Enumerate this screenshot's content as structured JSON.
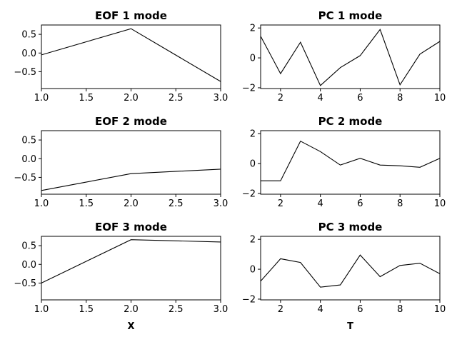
{
  "chart_data": [
    {
      "type": "line",
      "title": "EOF 1 mode",
      "xlabel": "",
      "ylabel": "",
      "x": [
        1,
        2,
        3
      ],
      "y": [
        -0.05,
        0.65,
        -0.76
      ],
      "xlim": [
        1.0,
        3.0
      ],
      "ylim": [
        -0.95,
        0.75
      ],
      "xticks": [
        1.0,
        1.5,
        2.0,
        2.5,
        3.0
      ],
      "xtick_labels": [
        "1.0",
        "1.5",
        "2.0",
        "2.5",
        "3.0"
      ],
      "yticks": [
        0.5,
        0.0,
        -0.5
      ],
      "ytick_labels": [
        "0.5",
        "0.0",
        "−0.5"
      ]
    },
    {
      "type": "line",
      "title": "PC 1 mode",
      "xlabel": "",
      "ylabel": "",
      "x": [
        1,
        2,
        3,
        4,
        5,
        6,
        7,
        8,
        9,
        10
      ],
      "y": [
        1.45,
        -1.05,
        1.05,
        -1.85,
        -0.65,
        0.15,
        1.9,
        -1.8,
        0.25,
        1.1
      ],
      "xlim": [
        1,
        10
      ],
      "ylim": [
        -2.05,
        2.2
      ],
      "xticks": [
        2,
        4,
        6,
        8,
        10
      ],
      "xtick_labels": [
        "2",
        "4",
        "6",
        "8",
        "10"
      ],
      "yticks": [
        2,
        0,
        -2
      ],
      "ytick_labels": [
        "2",
        "0",
        "−2"
      ]
    },
    {
      "type": "line",
      "title": "EOF 2 mode",
      "xlabel": "",
      "ylabel": "",
      "x": [
        1,
        2,
        3
      ],
      "y": [
        -0.85,
        -0.4,
        -0.28
      ],
      "xlim": [
        1.0,
        3.0
      ],
      "ylim": [
        -0.95,
        0.75
      ],
      "xticks": [
        1.0,
        1.5,
        2.0,
        2.5,
        3.0
      ],
      "xtick_labels": [
        "1.0",
        "1.5",
        "2.0",
        "2.5",
        "3.0"
      ],
      "yticks": [
        0.5,
        0.0,
        -0.5
      ],
      "ytick_labels": [
        "0.5",
        "0.0",
        "−0.5"
      ]
    },
    {
      "type": "line",
      "title": "PC 2 mode",
      "xlabel": "",
      "ylabel": "",
      "x": [
        1,
        2,
        3,
        4,
        5,
        6,
        7,
        8,
        9,
        10
      ],
      "y": [
        -1.15,
        -1.15,
        1.5,
        0.8,
        -0.1,
        0.35,
        -0.1,
        -0.15,
        -0.25,
        0.35
      ],
      "xlim": [
        1,
        10
      ],
      "ylim": [
        -2.05,
        2.2
      ],
      "xticks": [
        2,
        4,
        6,
        8,
        10
      ],
      "xtick_labels": [
        "2",
        "4",
        "6",
        "8",
        "10"
      ],
      "yticks": [
        2,
        0,
        -2
      ],
      "ytick_labels": [
        "2",
        "0",
        "−2"
      ]
    },
    {
      "type": "line",
      "title": "EOF 3 mode",
      "xlabel": "X",
      "ylabel": "",
      "x": [
        1,
        2,
        3
      ],
      "y": [
        -0.5,
        0.66,
        0.6
      ],
      "xlim": [
        1.0,
        3.0
      ],
      "ylim": [
        -0.95,
        0.75
      ],
      "xticks": [
        1.0,
        1.5,
        2.0,
        2.5,
        3.0
      ],
      "xtick_labels": [
        "1.0",
        "1.5",
        "2.0",
        "2.5",
        "3.0"
      ],
      "yticks": [
        0.5,
        0.0,
        -0.5
      ],
      "ytick_labels": [
        "0.5",
        "0.0",
        "−0.5"
      ]
    },
    {
      "type": "line",
      "title": "PC 3 mode",
      "xlabel": "T",
      "ylabel": "",
      "x": [
        1,
        2,
        3,
        4,
        5,
        6,
        7,
        8,
        9,
        10
      ],
      "y": [
        -0.8,
        0.7,
        0.45,
        -1.2,
        -1.05,
        0.95,
        -0.5,
        0.25,
        0.4,
        -0.3
      ],
      "xlim": [
        1,
        10
      ],
      "ylim": [
        -2.05,
        2.2
      ],
      "xticks": [
        2,
        4,
        6,
        8,
        10
      ],
      "xtick_labels": [
        "2",
        "4",
        "6",
        "8",
        "10"
      ],
      "yticks": [
        2,
        0,
        -2
      ],
      "ytick_labels": [
        "2",
        "0",
        "−2"
      ]
    }
  ]
}
